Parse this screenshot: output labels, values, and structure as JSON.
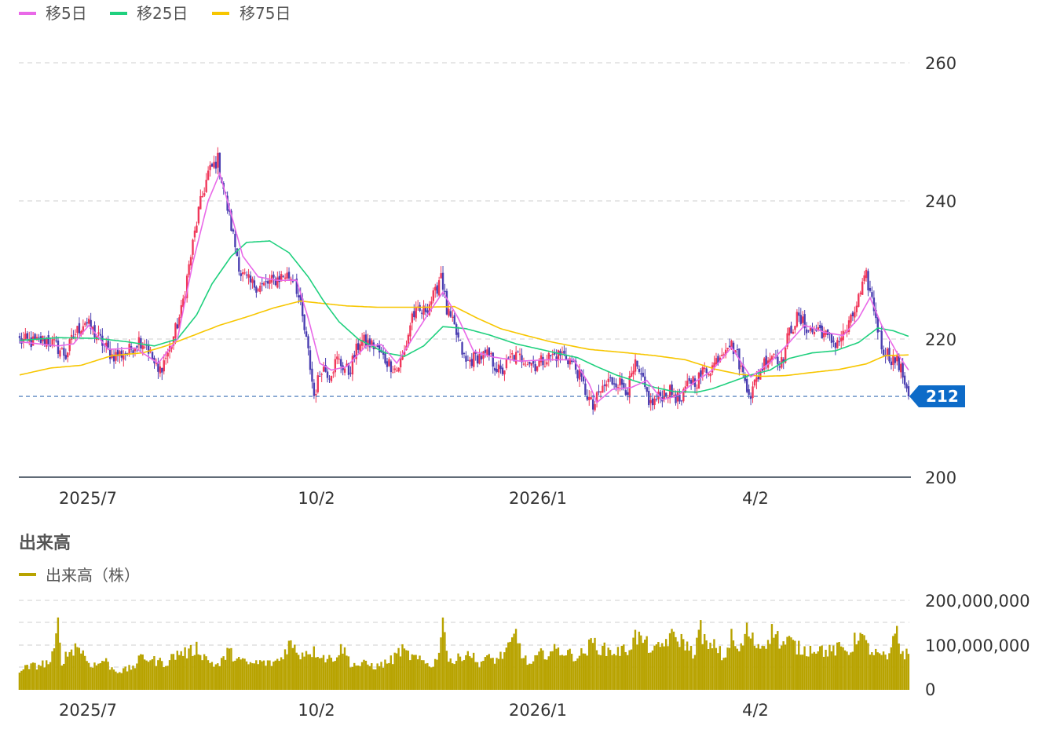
{
  "chart_data": [
    {
      "type": "candlestick",
      "title": "",
      "legend": [
        {
          "name": "移5日",
          "color": "#e969e8"
        },
        {
          "name": "移25日",
          "color": "#1fd07e"
        },
        {
          "name": "移75日",
          "color": "#f7c600"
        }
      ],
      "ylim": [
        200,
        260
      ],
      "yticks": [
        "260",
        "240",
        "220",
        "200"
      ],
      "xticks": [
        "2025/7",
        "10/2",
        "2026/1",
        "4/2"
      ],
      "current_price": "212",
      "current_price_value": 211.7,
      "up_color": "#f0375a",
      "down_color": "#4a3eb1",
      "close_anchors": [
        [
          0,
          219.8
        ],
        [
          8,
          219.5
        ],
        [
          14,
          220.0
        ],
        [
          20,
          218.7
        ],
        [
          24,
          217.6
        ],
        [
          28,
          220.5
        ],
        [
          34,
          222.6
        ],
        [
          42,
          219.8
        ],
        [
          48,
          217.6
        ],
        [
          56,
          218.0
        ],
        [
          62,
          219.9
        ],
        [
          66,
          219.2
        ],
        [
          72,
          215.0
        ],
        [
          78,
          218.6
        ],
        [
          84,
          224.0
        ],
        [
          88,
          230.5
        ],
        [
          93,
          238.5
        ],
        [
          98,
          244.0
        ],
        [
          103,
          246.0
        ],
        [
          108,
          239.0
        ],
        [
          112,
          233.5
        ],
        [
          115,
          229.5
        ],
        [
          120,
          228.0
        ],
        [
          126,
          227.6
        ],
        [
          132,
          228.5
        ],
        [
          138,
          229.3
        ],
        [
          143,
          228.8
        ],
        [
          146,
          224.5
        ],
        [
          150,
          218.0
        ],
        [
          153,
          211.8
        ],
        [
          157,
          216.0
        ],
        [
          161,
          215.0
        ],
        [
          165,
          217.0
        ],
        [
          171,
          215.2
        ],
        [
          177,
          219.8
        ],
        [
          184,
          219.0
        ],
        [
          190,
          217.0
        ],
        [
          196,
          215.5
        ],
        [
          200,
          218.0
        ],
        [
          204,
          223.5
        ],
        [
          210,
          224.0
        ],
        [
          216,
          226.5
        ],
        [
          219,
          229.8
        ],
        [
          222,
          224.0
        ],
        [
          226,
          221.5
        ],
        [
          232,
          216.5
        ],
        [
          238,
          217.5
        ],
        [
          244,
          217.5
        ],
        [
          250,
          215.0
        ],
        [
          256,
          217.5
        ],
        [
          262,
          217.2
        ],
        [
          268,
          216.3
        ],
        [
          276,
          217.5
        ],
        [
          282,
          217.8
        ],
        [
          286,
          217.0
        ],
        [
          290,
          215.3
        ],
        [
          294,
          212.5
        ],
        [
          298,
          210.0
        ],
        [
          302,
          212.5
        ],
        [
          306,
          213.8
        ],
        [
          310,
          214.0
        ],
        [
          316,
          212.8
        ],
        [
          320,
          216.0
        ],
        [
          324,
          213.5
        ],
        [
          328,
          210.5
        ],
        [
          332,
          211.5
        ],
        [
          336,
          212.5
        ],
        [
          340,
          212.0
        ],
        [
          344,
          210.8
        ],
        [
          348,
          214.2
        ],
        [
          352,
          214.0
        ],
        [
          356,
          215.5
        ],
        [
          360,
          216.0
        ],
        [
          364,
          217.8
        ],
        [
          368,
          219.6
        ],
        [
          372,
          218.4
        ],
        [
          376,
          214.8
        ],
        [
          380,
          212.0
        ],
        [
          384,
          214.8
        ],
        [
          388,
          217.2
        ],
        [
          392,
          218.0
        ],
        [
          396,
          216.5
        ],
        [
          400,
          221.0
        ],
        [
          404,
          223.0
        ],
        [
          408,
          222.0
        ],
        [
          412,
          221.0
        ],
        [
          416,
          221.5
        ],
        [
          420,
          220.0
        ],
        [
          424,
          219.5
        ],
        [
          428,
          220.5
        ],
        [
          432,
          222.5
        ],
        [
          436,
          225.8
        ],
        [
          440,
          229.0
        ],
        [
          444,
          224.5
        ],
        [
          448,
          219.0
        ],
        [
          452,
          217.5
        ],
        [
          456,
          216.8
        ],
        [
          460,
          214.0
        ],
        [
          462,
          212.0
        ]
      ],
      "ma5_anchors": [
        [
          0,
          219.6
        ],
        [
          20,
          219.0
        ],
        [
          28,
          219.3
        ],
        [
          36,
          222.0
        ],
        [
          46,
          218.5
        ],
        [
          60,
          218.7
        ],
        [
          72,
          216.5
        ],
        [
          82,
          220.0
        ],
        [
          90,
          231.0
        ],
        [
          98,
          240.0
        ],
        [
          104,
          244.0
        ],
        [
          110,
          238.0
        ],
        [
          116,
          232.0
        ],
        [
          124,
          229.0
        ],
        [
          134,
          228.5
        ],
        [
          144,
          228.5
        ],
        [
          150,
          223.0
        ],
        [
          156,
          216.5
        ],
        [
          162,
          215.5
        ],
        [
          170,
          216.0
        ],
        [
          180,
          219.0
        ],
        [
          188,
          219.2
        ],
        [
          196,
          216.5
        ],
        [
          204,
          220.0
        ],
        [
          212,
          223.5
        ],
        [
          220,
          226.8
        ],
        [
          228,
          223.0
        ],
        [
          236,
          218.2
        ],
        [
          246,
          217.4
        ],
        [
          260,
          216.8
        ],
        [
          274,
          217.0
        ],
        [
          288,
          217.0
        ],
        [
          296,
          213.5
        ],
        [
          300,
          210.8
        ],
        [
          308,
          212.7
        ],
        [
          318,
          213.0
        ],
        [
          326,
          214.0
        ],
        [
          334,
          211.2
        ],
        [
          342,
          211.8
        ],
        [
          350,
          213.6
        ],
        [
          360,
          215.5
        ],
        [
          370,
          218.8
        ],
        [
          380,
          214.5
        ],
        [
          390,
          216.6
        ],
        [
          400,
          219.5
        ],
        [
          408,
          222.0
        ],
        [
          418,
          221.0
        ],
        [
          428,
          220.5
        ],
        [
          436,
          223.0
        ],
        [
          442,
          226.0
        ],
        [
          448,
          222.0
        ],
        [
          456,
          218.0
        ],
        [
          462,
          215.5
        ]
      ],
      "ma25_anchors": [
        [
          0,
          219.8
        ],
        [
          20,
          220.2
        ],
        [
          40,
          220.1
        ],
        [
          56,
          219.6
        ],
        [
          70,
          219.0
        ],
        [
          82,
          220.0
        ],
        [
          92,
          223.5
        ],
        [
          100,
          228.0
        ],
        [
          110,
          232.0
        ],
        [
          118,
          234.0
        ],
        [
          130,
          234.2
        ],
        [
          140,
          232.5
        ],
        [
          150,
          229.0
        ],
        [
          158,
          225.5
        ],
        [
          166,
          222.5
        ],
        [
          176,
          220.0
        ],
        [
          190,
          218.0
        ],
        [
          200,
          217.5
        ],
        [
          210,
          219.0
        ],
        [
          220,
          221.8
        ],
        [
          232,
          221.5
        ],
        [
          244,
          220.6
        ],
        [
          258,
          219.3
        ],
        [
          274,
          218.3
        ],
        [
          290,
          217.3
        ],
        [
          300,
          216.0
        ],
        [
          310,
          214.8
        ],
        [
          320,
          213.9
        ],
        [
          330,
          213.0
        ],
        [
          340,
          212.4
        ],
        [
          352,
          212.3
        ],
        [
          360,
          212.8
        ],
        [
          370,
          213.8
        ],
        [
          380,
          214.8
        ],
        [
          390,
          215.5
        ],
        [
          400,
          217.2
        ],
        [
          412,
          218.0
        ],
        [
          424,
          218.3
        ],
        [
          436,
          219.5
        ],
        [
          446,
          221.6
        ],
        [
          454,
          221.2
        ],
        [
          462,
          220.4
        ]
      ],
      "ma75_anchors": [
        [
          0,
          214.8
        ],
        [
          16,
          215.8
        ],
        [
          32,
          216.2
        ],
        [
          48,
          217.6
        ],
        [
          64,
          218.0
        ],
        [
          76,
          219.0
        ],
        [
          90,
          220.5
        ],
        [
          104,
          222.0
        ],
        [
          118,
          223.2
        ],
        [
          132,
          224.5
        ],
        [
          146,
          225.5
        ],
        [
          156,
          225.2
        ],
        [
          170,
          224.8
        ],
        [
          186,
          224.6
        ],
        [
          210,
          224.6
        ],
        [
          226,
          224.7
        ],
        [
          238,
          223.0
        ],
        [
          250,
          221.5
        ],
        [
          262,
          220.6
        ],
        [
          276,
          219.6
        ],
        [
          296,
          218.5
        ],
        [
          316,
          218.0
        ],
        [
          330,
          217.6
        ],
        [
          346,
          217.0
        ],
        [
          362,
          215.6
        ],
        [
          374,
          214.9
        ],
        [
          386,
          214.6
        ],
        [
          398,
          214.7
        ],
        [
          410,
          215.1
        ],
        [
          426,
          215.6
        ],
        [
          440,
          216.4
        ],
        [
          450,
          217.6
        ],
        [
          462,
          217.7
        ]
      ]
    },
    {
      "type": "bar",
      "title": "出来高",
      "legend": [
        {
          "name": "出来高（株）",
          "color": "#b8a300"
        }
      ],
      "ylim": [
        0,
        200000000
      ],
      "yticks": [
        "200,000,000",
        "100,000,000",
        "0"
      ],
      "xticks": [
        "2025/7",
        "10/2",
        "2026/1",
        "4/2"
      ],
      "volume_anchors": [
        [
          0,
          45
        ],
        [
          6,
          52
        ],
        [
          12,
          58
        ],
        [
          16,
          62
        ],
        [
          18,
          85
        ],
        [
          20,
          145
        ],
        [
          22,
          65
        ],
        [
          26,
          85
        ],
        [
          30,
          100
        ],
        [
          32,
          90
        ],
        [
          36,
          60
        ],
        [
          40,
          55
        ],
        [
          44,
          68
        ],
        [
          48,
          48
        ],
        [
          52,
          42
        ],
        [
          56,
          45
        ],
        [
          60,
          55
        ],
        [
          64,
          75
        ],
        [
          70,
          65
        ],
        [
          76,
          60
        ],
        [
          80,
          75
        ],
        [
          84,
          85
        ],
        [
          88,
          82
        ],
        [
          92,
          95
        ],
        [
          96,
          75
        ],
        [
          100,
          60
        ],
        [
          104,
          55
        ],
        [
          108,
          85
        ],
        [
          112,
          75
        ],
        [
          116,
          62
        ],
        [
          120,
          58
        ],
        [
          126,
          62
        ],
        [
          130,
          58
        ],
        [
          136,
          70
        ],
        [
          140,
          105
        ],
        [
          146,
          80
        ],
        [
          150,
          88
        ],
        [
          156,
          82
        ],
        [
          160,
          68
        ],
        [
          164,
          75
        ],
        [
          168,
          95
        ],
        [
          172,
          60
        ],
        [
          176,
          55
        ],
        [
          180,
          58
        ],
        [
          186,
          52
        ],
        [
          190,
          60
        ],
        [
          194,
          68
        ],
        [
          198,
          90
        ],
        [
          202,
          78
        ],
        [
          208,
          65
        ],
        [
          214,
          55
        ],
        [
          218,
          75
        ],
        [
          220,
          190
        ],
        [
          222,
          80
        ],
        [
          226,
          60
        ],
        [
          230,
          78
        ],
        [
          234,
          85
        ],
        [
          238,
          58
        ],
        [
          242,
          70
        ],
        [
          248,
          68
        ],
        [
          254,
          90
        ],
        [
          258,
          125
        ],
        [
          262,
          70
        ],
        [
          266,
          55
        ],
        [
          270,
          78
        ],
        [
          274,
          82
        ],
        [
          280,
          90
        ],
        [
          286,
          80
        ],
        [
          290,
          75
        ],
        [
          294,
          85
        ],
        [
          298,
          108
        ],
        [
          302,
          92
        ],
        [
          306,
          88
        ],
        [
          310,
          85
        ],
        [
          316,
          90
        ],
        [
          320,
          120
        ],
        [
          324,
          110
        ],
        [
          330,
          85
        ],
        [
          334,
          100
        ],
        [
          338,
          118
        ],
        [
          342,
          115
        ],
        [
          346,
          105
        ],
        [
          350,
          80
        ],
        [
          354,
          135
        ],
        [
          358,
          90
        ],
        [
          362,
          100
        ],
        [
          366,
          68
        ],
        [
          370,
          118
        ],
        [
          374,
          82
        ],
        [
          378,
          132
        ],
        [
          382,
          105
        ],
        [
          386,
          98
        ],
        [
          392,
          135
        ],
        [
          396,
          100
        ],
        [
          400,
          110
        ],
        [
          404,
          95
        ],
        [
          408,
          88
        ],
        [
          414,
          95
        ],
        [
          420,
          85
        ],
        [
          426,
          92
        ],
        [
          432,
          88
        ],
        [
          436,
          130
        ],
        [
          440,
          100
        ],
        [
          444,
          82
        ],
        [
          448,
          75
        ],
        [
          452,
          70
        ],
        [
          456,
          143
        ],
        [
          458,
          85
        ],
        [
          462,
          78
        ]
      ]
    }
  ]
}
